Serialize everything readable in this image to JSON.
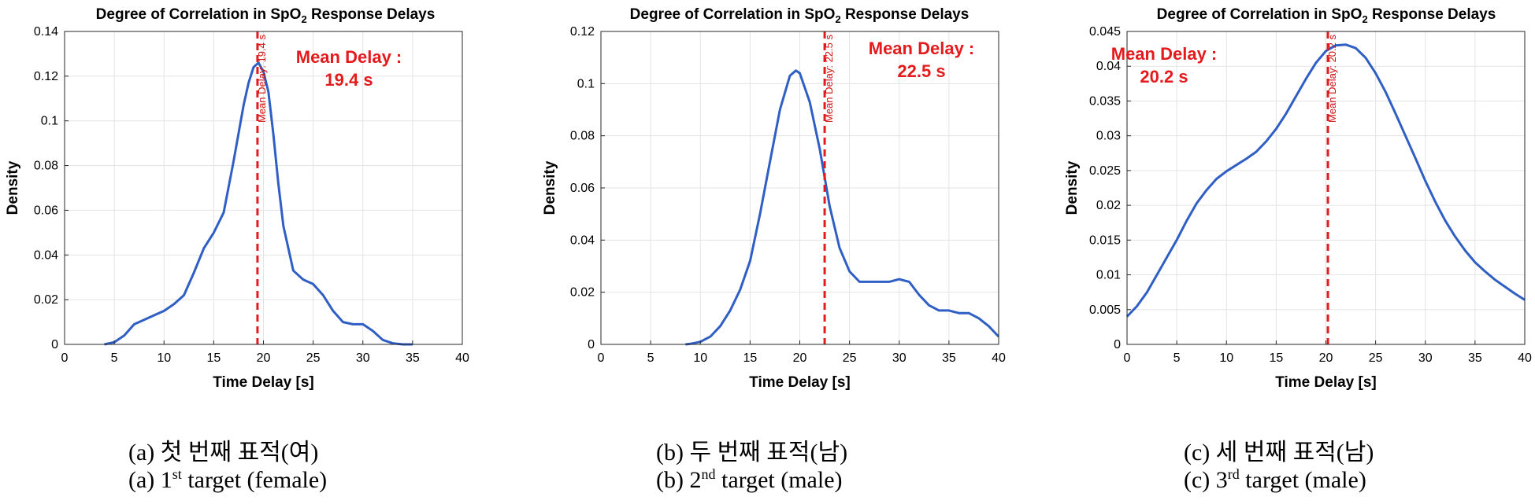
{
  "chart_data": [
    {
      "type": "line",
      "panel": "a",
      "title": "Degree of Correlation in SpO",
      "title_subscript": "2",
      "title_suffix": " Response Delays",
      "xlabel": "Time Delay [s]",
      "ylabel": "Density",
      "xlim": [
        0,
        40
      ],
      "ylim": [
        0,
        0.14
      ],
      "xticks": [
        "0",
        "5",
        "10",
        "15",
        "20",
        "25",
        "30",
        "35",
        "40"
      ],
      "yticks": [
        "0",
        "0.02",
        "0.04",
        "0.06",
        "0.08",
        "0.1",
        "0.12",
        "0.14"
      ],
      "grid": true,
      "series": [
        {
          "name": "Density",
          "color": "#2f5fc4",
          "x": [
            4,
            5,
            6,
            7,
            8,
            9,
            10,
            11,
            12,
            13,
            14,
            15,
            16,
            17,
            18,
            18.5,
            19,
            19.5,
            20,
            20.5,
            21,
            21.5,
            22,
            23,
            24,
            25,
            26,
            27,
            28,
            29,
            30,
            31,
            32,
            33,
            34,
            35
          ],
          "y": [
            0,
            0.001,
            0.004,
            0.009,
            0.011,
            0.013,
            0.015,
            0.018,
            0.022,
            0.032,
            0.043,
            0.05,
            0.059,
            0.082,
            0.107,
            0.117,
            0.124,
            0.126,
            0.122,
            0.113,
            0.094,
            0.072,
            0.053,
            0.033,
            0.029,
            0.027,
            0.022,
            0.015,
            0.01,
            0.009,
            0.009,
            0.006,
            0.002,
            0.0005,
            0,
            0
          ]
        }
      ],
      "mean_line": {
        "x": 19.4,
        "label": "Mean Delay: 19.4 s",
        "color": "#e41a1c"
      },
      "callout": [
        "Mean Delay :",
        "19.4 s"
      ]
    },
    {
      "type": "line",
      "panel": "b",
      "title": "Degree of Correlation in SpO",
      "title_subscript": "2",
      "title_suffix": " Response Delays",
      "xlabel": "Time Delay [s]",
      "ylabel": "Density",
      "xlim": [
        0,
        40
      ],
      "ylim": [
        0,
        0.12
      ],
      "xticks": [
        "0",
        "5",
        "10",
        "15",
        "20",
        "25",
        "30",
        "35",
        "40"
      ],
      "yticks": [
        "0",
        "0.02",
        "0.04",
        "0.06",
        "0.08",
        "0.1",
        "0.12"
      ],
      "grid": true,
      "series": [
        {
          "name": "Density",
          "color": "#2f5fc4",
          "x": [
            8.5,
            9,
            10,
            11,
            12,
            13,
            14,
            15,
            16,
            17,
            18,
            19,
            19.6,
            20,
            21,
            22,
            22.5,
            23,
            24,
            25,
            26,
            27,
            28,
            29,
            30,
            31,
            32,
            33,
            34,
            35,
            36,
            37,
            38,
            39,
            40
          ],
          "y": [
            0,
            0.0002,
            0.001,
            0.003,
            0.007,
            0.013,
            0.021,
            0.032,
            0.05,
            0.07,
            0.09,
            0.103,
            0.105,
            0.104,
            0.093,
            0.075,
            0.064,
            0.053,
            0.037,
            0.028,
            0.024,
            0.024,
            0.024,
            0.024,
            0.025,
            0.024,
            0.019,
            0.015,
            0.013,
            0.013,
            0.012,
            0.012,
            0.01,
            0.007,
            0.003
          ]
        }
      ],
      "mean_line": {
        "x": 22.5,
        "label": "Mean Delay: 22.5 s",
        "color": "#e41a1c"
      },
      "callout": [
        "Mean Delay :",
        "22.5 s"
      ]
    },
    {
      "type": "line",
      "panel": "c",
      "title": "Degree of Correlation in SpO",
      "title_subscript": "2",
      "title_suffix": " Response Delays",
      "xlabel": "Time Delay [s]",
      "ylabel": "Density",
      "xlim": [
        0,
        40
      ],
      "ylim": [
        0,
        0.045
      ],
      "xticks": [
        "0",
        "5",
        "10",
        "15",
        "20",
        "25",
        "30",
        "35",
        "40"
      ],
      "yticks": [
        "0",
        "0.005",
        "0.01",
        "0.015",
        "0.02",
        "0.025",
        "0.03",
        "0.035",
        "0.04",
        "0.045"
      ],
      "grid": true,
      "series": [
        {
          "name": "Density",
          "color": "#2f5fc4",
          "x": [
            0,
            1,
            2,
            3,
            4,
            5,
            6,
            7,
            8,
            9,
            10,
            11,
            12,
            13,
            14,
            15,
            16,
            17,
            18,
            19,
            20,
            21,
            22,
            23,
            24,
            25,
            26,
            27,
            28,
            29,
            30,
            31,
            32,
            33,
            34,
            35,
            36,
            37,
            38,
            39,
            40
          ],
          "y": [
            0.004,
            0.0055,
            0.0075,
            0.01,
            0.0125,
            0.015,
            0.0178,
            0.0203,
            0.0222,
            0.0238,
            0.0249,
            0.0258,
            0.0267,
            0.0277,
            0.0292,
            0.031,
            0.0332,
            0.0357,
            0.0382,
            0.0405,
            0.0422,
            0.043,
            0.0431,
            0.0426,
            0.0412,
            0.039,
            0.0363,
            0.0332,
            0.03,
            0.0268,
            0.0235,
            0.0205,
            0.0178,
            0.0155,
            0.0135,
            0.0118,
            0.0105,
            0.0093,
            0.0083,
            0.0073,
            0.0064
          ]
        }
      ],
      "mean_line": {
        "x": 20.2,
        "label": "Mean Delay: 20.2 s",
        "color": "#e41a1c"
      },
      "callout": [
        "Mean Delay :",
        "20.2 s"
      ]
    }
  ],
  "captions": [
    {
      "korean": "(a)  첫  번째  표적(여)",
      "eng_prefix": "(a)  1",
      "eng_sup": "st",
      "eng_suffix": "  target  (female)"
    },
    {
      "korean": "(b)  두  번째  표적(남)",
      "eng_prefix": "(b)  2",
      "eng_sup": "nd",
      "eng_suffix": "  target  (male)"
    },
    {
      "korean": "(c)  세  번째  표적(남)",
      "eng_prefix": "(c)  3",
      "eng_sup": "rd",
      "eng_suffix": "  target  (male)"
    }
  ]
}
